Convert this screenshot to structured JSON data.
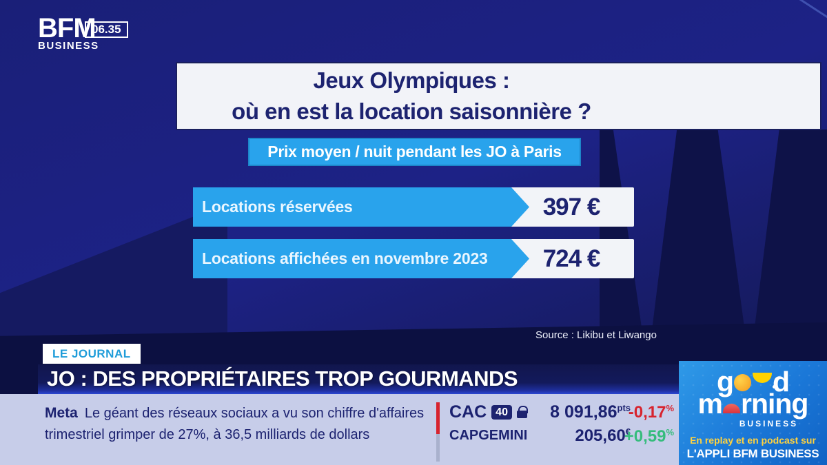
{
  "channel": {
    "logo_line1": "BFM",
    "logo_line2": "BUSINESS",
    "time": "06.35"
  },
  "infographic": {
    "title_line1": "Jeux Olympiques :",
    "title_line2": "où en est la location saisonnière ?",
    "subtitle": "Prix moyen / nuit pendant les JO à Paris",
    "bars": [
      {
        "label": "Locations réservées",
        "value": "397 €"
      },
      {
        "label": "Locations affichées en novembre 2023",
        "value": "724 €"
      }
    ],
    "source": "Source : Likibu et Liwango"
  },
  "chart_data": {
    "type": "bar",
    "title": "Jeux Olympiques : où en est la location saisonnière ?",
    "subtitle": "Prix moyen / nuit pendant les JO à Paris",
    "categories": [
      "Locations réservées",
      "Locations affichées en novembre 2023"
    ],
    "values": [
      397,
      724
    ],
    "unit": "€",
    "source": "Source : Likibu et Liwango",
    "layout": "horizontal label bars of equal length with value tags at right",
    "bar_color": "#29a3ec"
  },
  "banner": {
    "kicker": "LE JOURNAL",
    "headline": "JO : DES PROPRIÉTAIRES TROP GOURMANDS"
  },
  "ticker": {
    "label": "Meta",
    "line1": "Le géant des réseaux sociaux a vu son chiffre d'affaires",
    "line2": "trimestriel grimper de 27%, à 36,5 milliards de dollars"
  },
  "markets": {
    "percent": "%",
    "rows": [
      {
        "name": "CAC",
        "badge": "40",
        "value": "8 091,86",
        "unit": "pts",
        "change": "-0,17",
        "direction": "down"
      },
      {
        "name": "CAPGEMINI",
        "value": "205,60",
        "unit": "€",
        "change": "+0,59",
        "direction": "up"
      }
    ]
  },
  "promo": {
    "logo": {
      "good_g": "g",
      "good_d": "d",
      "morning_m": "m",
      "morning_rest": "rning",
      "business": "BUSINESS"
    },
    "line1": "En replay et en podcast sur",
    "line2": "L'APPLI BFM BUSINESS"
  },
  "colors": {
    "accent_blue": "#29a3ec",
    "navy_text": "#1d2370",
    "lavender": "#c7cde9",
    "negative_red": "#d7232e",
    "positive_green": "#35bc7c",
    "panel_blue": "#1b78d8",
    "kicker_blue": "#1e9cd9",
    "promo_yellow": "#ffd23e"
  }
}
